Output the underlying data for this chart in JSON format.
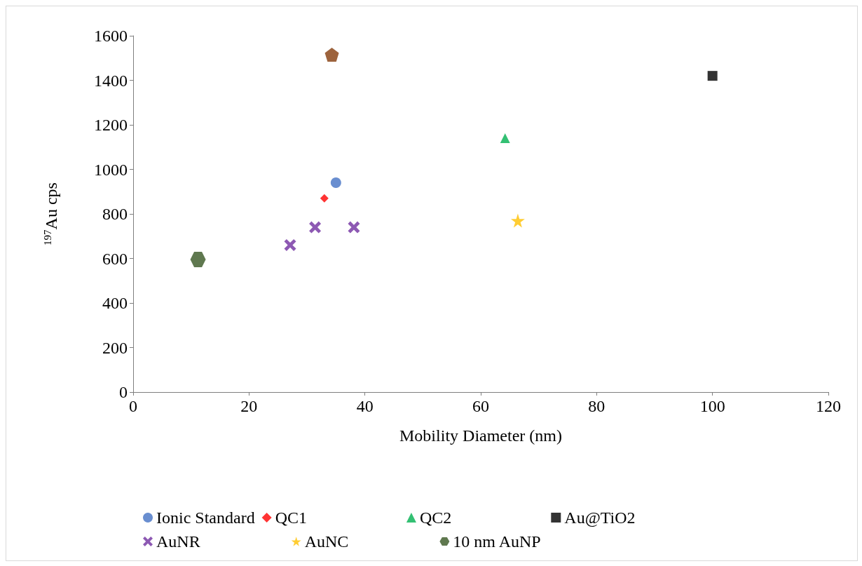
{
  "chart_data": {
    "type": "scatter",
    "xlabel": "Mobility Diameter (nm)",
    "ylabel": "$^{197}$Au cps",
    "xlim": [
      0,
      120
    ],
    "xticks": [
      0,
      20,
      40,
      60,
      80,
      100,
      120
    ],
    "ylim": [
      0,
      1600
    ],
    "yticks": [
      0,
      200,
      400,
      600,
      800,
      1000,
      1200,
      1400,
      1600
    ],
    "grid": false,
    "legend": "bottom",
    "series": [
      {
        "name": "Ionic Standard",
        "color": "#4472c4",
        "marker": "circle",
        "x": [
          35
        ],
        "values": [
          940
        ]
      },
      {
        "name": "QC1",
        "color": "#ff0000",
        "marker": "diamond",
        "x": [
          33
        ],
        "values": [
          870
        ]
      },
      {
        "name": "QC2",
        "color": "#00b050",
        "marker": "triangle",
        "x": [
          64.2
        ],
        "values": [
          1140
        ]
      },
      {
        "name": "Au@TiO2",
        "color": "#000000",
        "marker": "square",
        "x": [
          100
        ],
        "values": [
          1420
        ]
      },
      {
        "name": "AuNR",
        "color": "#7030a0",
        "marker": "cross",
        "x": [
          27.1,
          31.4,
          38.1
        ],
        "values": [
          660,
          740,
          740
        ]
      },
      {
        "name": "AuNC",
        "color": "#ffc000",
        "marker": "star",
        "x": [
          66.4
        ],
        "values": [
          770
        ]
      },
      {
        "name": "10 nm AuNP",
        "color": "#375623",
        "x": [
          11.2
        ],
        "values": [
          595
        ]
      },
      {
        "color": "#843c0c",
        "x": [
          34.3
        ],
        "values": [
          1515
        ]
      }
    ]
  }
}
